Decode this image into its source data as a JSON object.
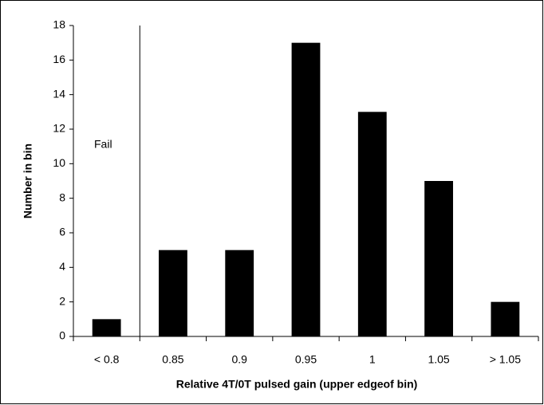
{
  "chart_data": {
    "type": "bar",
    "x_label": "Relative 4T/0T pulsed gain (upper edgeof bin)",
    "y_label": "Number in bin",
    "annotation": "Fail",
    "categories": [
      "< 0.8",
      "0.85",
      "0.9",
      "0.95",
      "1",
      "1.05",
      "> 1.05"
    ],
    "values": [
      1,
      5,
      5,
      17,
      13,
      9,
      2
    ],
    "color": "#000000",
    "ylim": [
      0,
      18
    ],
    "yticks": [
      0,
      2,
      4,
      6,
      8,
      10,
      12,
      14,
      16,
      18
    ],
    "grid": false
  }
}
